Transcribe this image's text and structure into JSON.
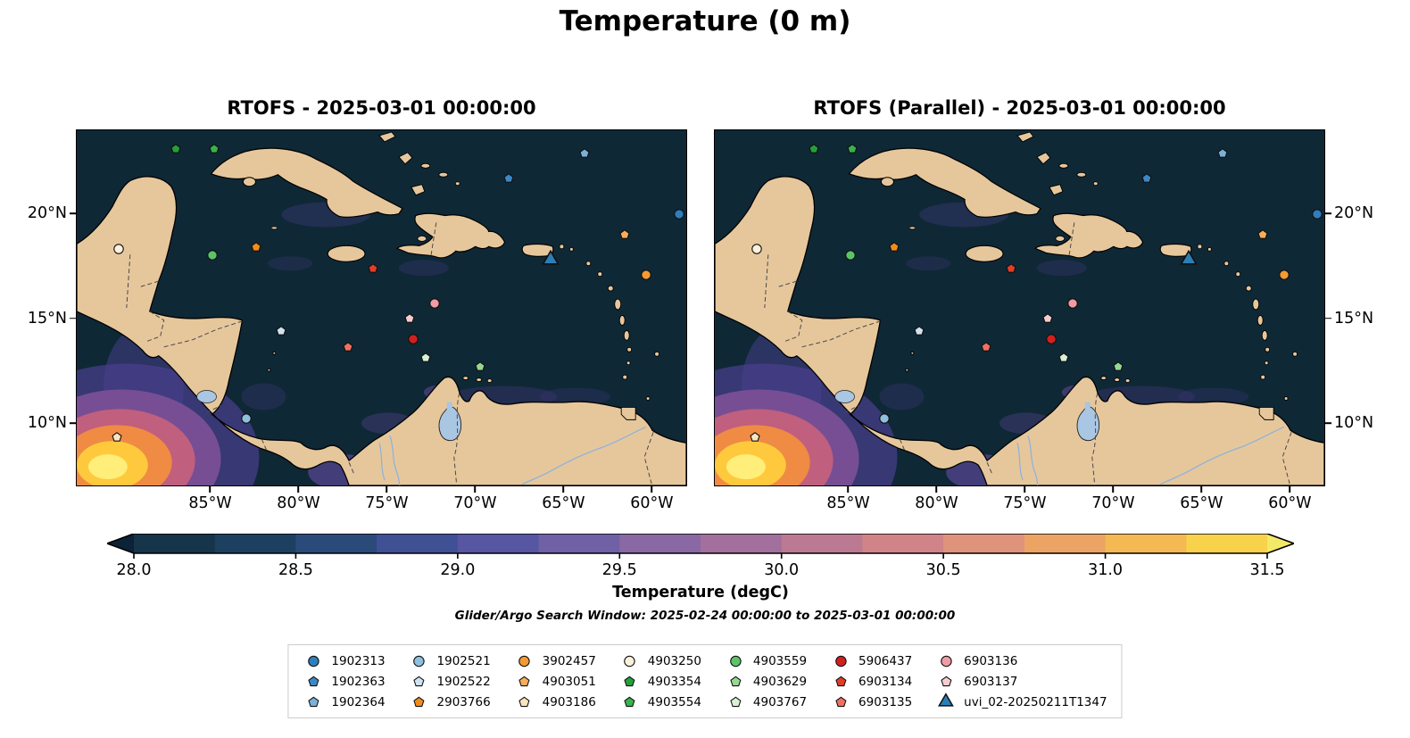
{
  "figure_title": "Temperature (0 m)",
  "panels": [
    {
      "title": "RTOFS - 2025-03-01 00:00:00"
    },
    {
      "title": "RTOFS (Parallel) - 2025-03-01 00:00:00"
    }
  ],
  "colorbar": {
    "label": "Temperature (degC)",
    "ticks": [
      {
        "value": 28.0,
        "label": "28.0"
      },
      {
        "value": 28.5,
        "label": "28.5"
      },
      {
        "value": 29.0,
        "label": "29.0"
      },
      {
        "value": 29.5,
        "label": "29.5"
      },
      {
        "value": 30.0,
        "label": "30.0"
      },
      {
        "value": 30.5,
        "label": "30.5"
      },
      {
        "value": 31.0,
        "label": "31.0"
      },
      {
        "value": 31.5,
        "label": "31.5"
      }
    ],
    "segment_colors": [
      "#16344a",
      "#1d4060",
      "#2a4a7a",
      "#3f5194",
      "#5756a3",
      "#7060a6",
      "#8a68a4",
      "#a36f9d",
      "#bb7992",
      "#d08487",
      "#e0937b",
      "#eca465",
      "#f4b952",
      "#f8d24b"
    ],
    "under_color": "#0a2336",
    "over_color": "#f2e968"
  },
  "subtitle": "Glider/Argo Search Window: 2025-02-24 00:00:00 to 2025-03-01 00:00:00",
  "chart_data": {
    "type": "map-scatter",
    "map_extent": {
      "lon_min": -92.6,
      "lon_max": -58.0,
      "lat_min": 7.0,
      "lat_max": 24.0
    },
    "x_ticks": [
      {
        "value": -85,
        "label": "85°W"
      },
      {
        "value": -80,
        "label": "80°W"
      },
      {
        "value": -75,
        "label": "75°W"
      },
      {
        "value": -70,
        "label": "70°W"
      },
      {
        "value": -65,
        "label": "65°W"
      },
      {
        "value": -60,
        "label": "60°W"
      }
    ],
    "y_ticks": [
      {
        "value": 20,
        "label": "20°N"
      },
      {
        "value": 15,
        "label": "15°N"
      },
      {
        "value": 10,
        "label": "10°N"
      }
    ],
    "colorbar_range": [
      28.0,
      31.5
    ],
    "platforms": [
      {
        "id": "1902313",
        "marker": "circle",
        "color": "#2e7ebc",
        "lon": -58.4,
        "lat": 20.0
      },
      {
        "id": "1902363",
        "marker": "pentagon",
        "color": "#3c88c4",
        "lon": -68.1,
        "lat": 21.7
      },
      {
        "id": "1902364",
        "marker": "pentagon",
        "color": "#79b1d8",
        "lon": -63.8,
        "lat": 22.9
      },
      {
        "id": "1902521",
        "marker": "circle",
        "color": "#8ec0e0",
        "lon": -83.0,
        "lat": 10.2
      },
      {
        "id": "1902522",
        "marker": "pentagon",
        "color": "#cfe2f2",
        "lon": -81.0,
        "lat": 14.4
      },
      {
        "id": "2903766",
        "marker": "pentagon",
        "color": "#f08c1c",
        "lon": -82.4,
        "lat": 18.4
      },
      {
        "id": "3902457",
        "marker": "circle",
        "color": "#f39a33",
        "lon": -60.3,
        "lat": 17.1
      },
      {
        "id": "4903051",
        "marker": "pentagon",
        "color": "#f8ad5a",
        "lon": -61.5,
        "lat": 19.0
      },
      {
        "id": "4903186",
        "marker": "pentagon",
        "color": "#fce4c0",
        "lon": -90.3,
        "lat": 9.3
      },
      {
        "id": "4903250",
        "marker": "circle",
        "color": "#fdf0dc",
        "lon": -90.2,
        "lat": 18.3
      },
      {
        "id": "4903354",
        "marker": "pentagon",
        "color": "#23a03c",
        "lon": -87.0,
        "lat": 23.1
      },
      {
        "id": "4903554",
        "marker": "pentagon",
        "color": "#37b34a",
        "lon": -84.8,
        "lat": 23.1
      },
      {
        "id": "4903559",
        "marker": "circle",
        "color": "#5cc468",
        "lon": -84.9,
        "lat": 18.0
      },
      {
        "id": "4903629",
        "marker": "pentagon",
        "color": "#97d793",
        "lon": -69.7,
        "lat": 12.7
      },
      {
        "id": "4903767",
        "marker": "pentagon",
        "color": "#d9f0d2",
        "lon": -72.8,
        "lat": 13.1
      },
      {
        "id": "5906437",
        "marker": "circle",
        "color": "#d2201f",
        "lon": -73.5,
        "lat": 14.0
      },
      {
        "id": "6903134",
        "marker": "pentagon",
        "color": "#e23d28",
        "lon": -75.8,
        "lat": 17.4
      },
      {
        "id": "6903135",
        "marker": "pentagon",
        "color": "#ee7160",
        "lon": -77.2,
        "lat": 13.6
      },
      {
        "id": "6903136",
        "marker": "circle",
        "color": "#f19ca4",
        "lon": -72.3,
        "lat": 15.7
      },
      {
        "id": "6903137",
        "marker": "pentagon",
        "color": "#f7ccd1",
        "lon": -73.7,
        "lat": 15.0
      },
      {
        "id": "uvi_02-20250211T1347",
        "marker": "triangle",
        "color": "#2a7fb8",
        "lon": -65.7,
        "lat": 17.8,
        "size": "large"
      }
    ]
  }
}
